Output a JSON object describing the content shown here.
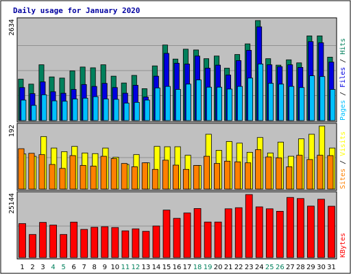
{
  "title": "Daily usage for January 2020",
  "colors": {
    "background": "#c0c0c0",
    "page_bg": "#ffffff",
    "title": "#0000a0",
    "hits": "#00805c",
    "files": "#0000e0",
    "pages": "#00c0ff",
    "visits": "#ffff00",
    "sites": "#ff8000",
    "kbytes": "#ff0000",
    "weekday_label": "#000000",
    "weekend_label": "#00805c",
    "separator": "#000000"
  },
  "chart_data": [
    {
      "type": "bar",
      "panel": "hits-files-pages",
      "ymax_label": "2634",
      "ylim": [
        0,
        2634
      ],
      "grid": true,
      "legend_position": "right",
      "legend_separator": "/",
      "categories": [
        "1",
        "2",
        "3",
        "4",
        "5",
        "6",
        "7",
        "8",
        "9",
        "10",
        "11",
        "12",
        "13",
        "14",
        "15",
        "16",
        "17",
        "18",
        "19",
        "20",
        "21",
        "22",
        "23",
        "24",
        "25",
        "26",
        "27",
        "28",
        "29",
        "30",
        "31"
      ],
      "series": [
        {
          "name": "Hits",
          "color": "#00805c",
          "values": [
            1090,
            960,
            1470,
            1150,
            1120,
            1310,
            1410,
            1390,
            1470,
            1170,
            990,
            1190,
            840,
            1440,
            1990,
            1620,
            1880,
            1860,
            1630,
            1700,
            1380,
            1740,
            2020,
            2634,
            1630,
            1460,
            1600,
            1520,
            2230,
            2230,
            1670
          ]
        },
        {
          "name": "Files",
          "color": "#0000e0",
          "values": [
            870,
            710,
            1020,
            760,
            720,
            820,
            950,
            900,
            980,
            870,
            720,
            930,
            620,
            1170,
            1770,
            1510,
            1490,
            1700,
            1380,
            1460,
            1200,
            1580,
            1850,
            2470,
            1470,
            1420,
            1470,
            1400,
            2080,
            2050,
            1540
          ]
        },
        {
          "name": "Pages",
          "color": "#00c0ff",
          "values": [
            540,
            400,
            680,
            520,
            510,
            570,
            590,
            630,
            570,
            560,
            460,
            480,
            540,
            860,
            900,
            820,
            960,
            1070,
            880,
            880,
            830,
            900,
            1120,
            1490,
            980,
            960,
            900,
            870,
            1180,
            1160,
            820
          ]
        }
      ],
      "legend": [
        "Pages",
        "Files",
        "Hits"
      ]
    },
    {
      "type": "bar",
      "panel": "sites-visits",
      "ymax_label": "192",
      "ylim": [
        0,
        192
      ],
      "grid": true,
      "legend_position": "right",
      "legend_separator": "/",
      "categories": [
        "1",
        "2",
        "3",
        "4",
        "5",
        "6",
        "7",
        "8",
        "9",
        "10",
        "11",
        "12",
        "13",
        "14",
        "15",
        "16",
        "17",
        "18",
        "19",
        "20",
        "21",
        "22",
        "23",
        "24",
        "25",
        "26",
        "27",
        "28",
        "29",
        "30",
        "31"
      ],
      "series": [
        {
          "name": "Visits",
          "color": "#ffff00",
          "values": [
            107,
            100,
            160,
            125,
            114,
            130,
            110,
            108,
            125,
            97,
            75,
            105,
            80,
            130,
            129,
            129,
            103,
            72,
            167,
            118,
            145,
            140,
            112,
            157,
            110,
            143,
            100,
            153,
            167,
            192,
            125
          ]
        },
        {
          "name": "Sites",
          "color": "#ff8000",
          "values": [
            123,
            109,
            105,
            75,
            63,
            102,
            72,
            70,
            100,
            93,
            78,
            68,
            80,
            60,
            88,
            73,
            60,
            72,
            100,
            78,
            85,
            83,
            80,
            120,
            98,
            95,
            68,
            103,
            90,
            103,
            102
          ]
        }
      ],
      "legend": [
        "Sites",
        "Visits"
      ]
    },
    {
      "type": "bar",
      "panel": "kbytes",
      "ymax_label": "25144",
      "ylim": [
        0,
        25144
      ],
      "grid": true,
      "legend_position": "right",
      "categories": [
        "1",
        "2",
        "3",
        "4",
        "5",
        "6",
        "7",
        "8",
        "9",
        "10",
        "11",
        "12",
        "13",
        "14",
        "15",
        "16",
        "17",
        "18",
        "19",
        "20",
        "21",
        "22",
        "23",
        "24",
        "25",
        "26",
        "27",
        "28",
        "29",
        "30",
        "31"
      ],
      "series": [
        {
          "name": "KBytes",
          "color": "#ff0000",
          "values": [
            13570,
            9220,
            14040,
            12960,
            9220,
            14150,
            11240,
            12090,
            12310,
            11990,
            10660,
            11460,
            10470,
            12600,
            18950,
            15650,
            17800,
            19570,
            14180,
            14180,
            19460,
            19900,
            25144,
            20230,
            19460,
            18470,
            24000,
            23560,
            20540,
            23280,
            20490
          ]
        }
      ],
      "legend": [
        "KBytes"
      ]
    }
  ],
  "x_axis": {
    "day_labels": [
      "1",
      "2",
      "3",
      "4",
      "5",
      "6",
      "7",
      "8",
      "9",
      "10",
      "11",
      "12",
      "13",
      "14",
      "15",
      "16",
      "17",
      "18",
      "19",
      "20",
      "21",
      "22",
      "23",
      "24",
      "25",
      "26",
      "27",
      "28",
      "29",
      "30",
      "31"
    ],
    "weekend_days": [
      "4",
      "5",
      "11",
      "12",
      "18",
      "19",
      "25",
      "26"
    ]
  }
}
